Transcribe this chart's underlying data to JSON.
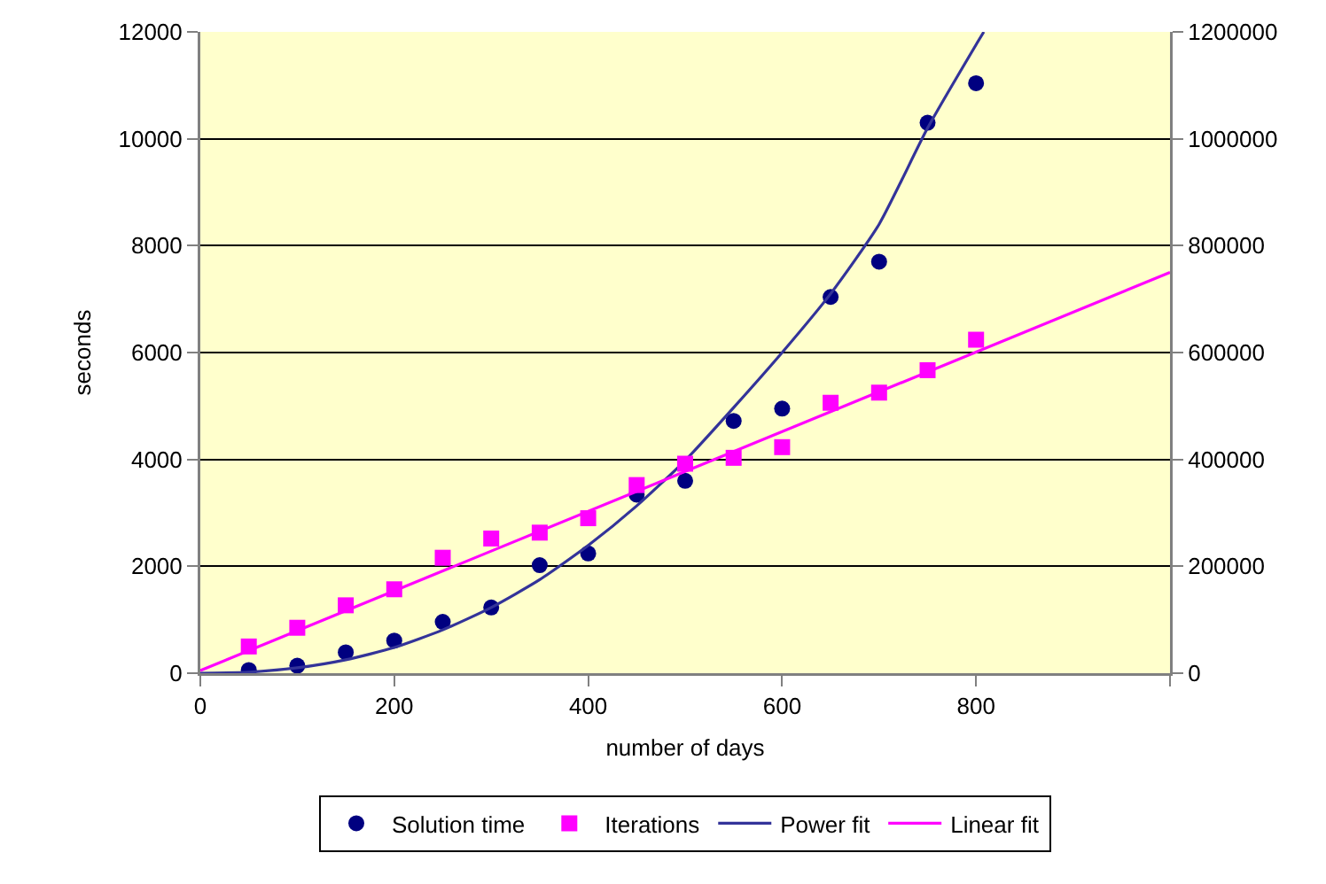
{
  "chart_data": {
    "type": "scatter",
    "xlabel": "number of days",
    "ylabel": "seconds",
    "xlim": [
      0,
      1000
    ],
    "xticks": [
      0,
      200,
      400,
      600,
      800,
      {
        "value": 1000,
        "label": null
      }
    ],
    "ylim": [
      0,
      12000
    ],
    "yticks": [
      0,
      2000,
      4000,
      6000,
      8000,
      10000,
      12000
    ],
    "y2lim": [
      0,
      1200000
    ],
    "y2ticks": [
      0,
      200000,
      400000,
      600000,
      800000,
      1000000,
      1200000
    ],
    "grid": "y",
    "legend": "bottom",
    "x": [
      50,
      100,
      150,
      200,
      250,
      300,
      350,
      400,
      450,
      500,
      550,
      600,
      650,
      700,
      750,
      800
    ],
    "series": [
      {
        "name": "Solution time",
        "marker": "circle",
        "color": "#000080",
        "values": [
          60,
          140,
          390,
          610,
          960,
          1230,
          2020,
          2240,
          3340,
          3600,
          4720,
          4950,
          7040,
          7700,
          10300,
          11040
        ]
      },
      {
        "name": "Iterations",
        "marker": "square",
        "color": "#ff00ff",
        "axis": "y2",
        "values": [
          50000,
          85000,
          127000,
          157000,
          216000,
          252000,
          263000,
          290000,
          352000,
          392000,
          403000,
          423000,
          506000,
          525000,
          567000,
          624000
        ]
      },
      {
        "name": "Power fit",
        "type": "line",
        "marker": "none",
        "color": "#333399",
        "x": [
          0,
          50,
          100,
          150,
          200,
          250,
          300,
          350,
          400,
          450,
          500,
          550,
          600,
          650,
          700,
          750,
          800,
          808
        ],
        "values": [
          0,
          20,
          100,
          250,
          480,
          810,
          1230,
          1750,
          2390,
          3130,
          3980,
          4970,
          6000,
          7100,
          8400,
          10200,
          11760,
          12000
        ]
      },
      {
        "name": "Linear fit",
        "type": "line",
        "marker": "none",
        "color": "#ff00ff",
        "axis": "y2",
        "x": [
          0,
          1000
        ],
        "values": [
          5000,
          750000
        ]
      }
    ]
  }
}
